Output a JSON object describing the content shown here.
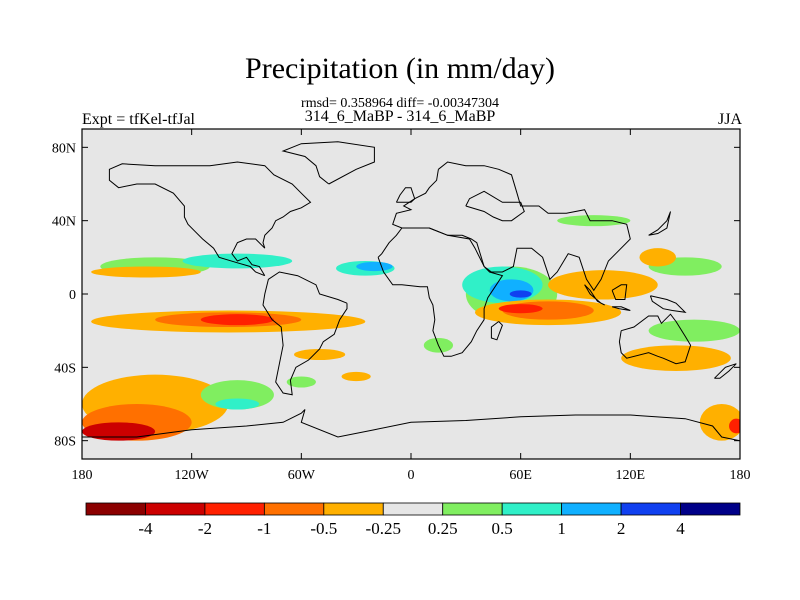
{
  "chart_data": {
    "type": "heatmap",
    "title": "Precipitation (in mm/day)",
    "stats_text": "rmsd= 0.358964 diff= -0.00347304",
    "subtitle": "314_6_MaBP - 314_6_MaBP",
    "left_label": "Expt = tfKel-tfJal",
    "right_label": "JJA",
    "xlim": [
      -180,
      180
    ],
    "ylim": [
      -90,
      90
    ],
    "x_ticks": [
      {
        "value": -180,
        "label": "180"
      },
      {
        "value": -120,
        "label": "120W"
      },
      {
        "value": -60,
        "label": "60W"
      },
      {
        "value": 0,
        "label": "0"
      },
      {
        "value": 60,
        "label": "60E"
      },
      {
        "value": 120,
        "label": "120E"
      },
      {
        "value": 180,
        "label": "180"
      }
    ],
    "y_ticks": [
      {
        "value": 80,
        "label": "80N"
      },
      {
        "value": 40,
        "label": "40N"
      },
      {
        "value": 0,
        "label": "0"
      },
      {
        "value": -40,
        "label": "40S"
      },
      {
        "value": -80,
        "label": "80S"
      }
    ],
    "colorbar": {
      "levels": [
        "-4",
        "-2",
        "-1",
        "-0.5",
        "-0.25",
        "0.25",
        "0.5",
        "1",
        "2",
        "4"
      ],
      "colors": [
        "#8b0000",
        "#cc0000",
        "#ff2000",
        "#ff7000",
        "#ffb000",
        "#e6e6e6",
        "#80ee60",
        "#30f0c8",
        "#10b0ff",
        "#1040f0",
        "#000088"
      ]
    },
    "background_color": "#e6e6e6",
    "anomaly_regions": [
      {
        "lon": -140,
        "lat": 15,
        "rx": 30,
        "ry": 5,
        "level": 6
      },
      {
        "lon": -95,
        "lat": 18,
        "rx": 30,
        "ry": 4,
        "level": 7
      },
      {
        "lon": -25,
        "lat": 14,
        "rx": 16,
        "ry": 4,
        "level": 7
      },
      {
        "lon": -20,
        "lat": 15,
        "rx": 10,
        "ry": 2.5,
        "level": 8
      },
      {
        "lon": -145,
        "lat": 12,
        "rx": 30,
        "ry": 3,
        "level": 4
      },
      {
        "lon": -100,
        "lat": -15,
        "rx": 75,
        "ry": 6,
        "level": 4
      },
      {
        "lon": -100,
        "lat": -14,
        "rx": 40,
        "ry": 4,
        "level": 3
      },
      {
        "lon": -95,
        "lat": -14,
        "rx": 20,
        "ry": 3,
        "level": 2
      },
      {
        "lon": -50,
        "lat": -33,
        "rx": 14,
        "ry": 3,
        "level": 4
      },
      {
        "lon": -140,
        "lat": -60,
        "rx": 40,
        "ry": 16,
        "level": 4
      },
      {
        "lon": -150,
        "lat": -70,
        "rx": 30,
        "ry": 10,
        "level": 3
      },
      {
        "lon": -160,
        "lat": -75,
        "rx": 20,
        "ry": 5,
        "level": 1
      },
      {
        "lon": -95,
        "lat": -55,
        "rx": 20,
        "ry": 8,
        "level": 6
      },
      {
        "lon": -95,
        "lat": -60,
        "rx": 12,
        "ry": 3,
        "level": 7
      },
      {
        "lon": 55,
        "lat": 0,
        "rx": 25,
        "ry": 15,
        "level": 6
      },
      {
        "lon": 50,
        "lat": 5,
        "rx": 22,
        "ry": 10,
        "level": 7
      },
      {
        "lon": 55,
        "lat": 2,
        "rx": 12,
        "ry": 6,
        "level": 8
      },
      {
        "lon": 60,
        "lat": 0,
        "rx": 6,
        "ry": 2,
        "level": 9
      },
      {
        "lon": 75,
        "lat": -10,
        "rx": 40,
        "ry": 7,
        "level": 4
      },
      {
        "lon": 75,
        "lat": -9,
        "rx": 25,
        "ry": 5,
        "level": 3
      },
      {
        "lon": 60,
        "lat": -8,
        "rx": 12,
        "ry": 2.5,
        "level": 2
      },
      {
        "lon": 90,
        "lat": 5,
        "rx": 12,
        "ry": 5,
        "level": 3
      },
      {
        "lon": 105,
        "lat": 5,
        "rx": 30,
        "ry": 8,
        "level": 4
      },
      {
        "lon": 155,
        "lat": -20,
        "rx": 25,
        "ry": 6,
        "level": 6
      },
      {
        "lon": 150,
        "lat": 15,
        "rx": 20,
        "ry": 5,
        "level": 6
      },
      {
        "lon": 135,
        "lat": 20,
        "rx": 10,
        "ry": 5,
        "level": 4
      },
      {
        "lon": 145,
        "lat": -35,
        "rx": 30,
        "ry": 7,
        "level": 4
      },
      {
        "lon": 100,
        "lat": 40,
        "rx": 20,
        "ry": 3,
        "level": 6
      },
      {
        "lon": 170,
        "lat": -70,
        "rx": 12,
        "ry": 10,
        "level": 4
      },
      {
        "lon": 178,
        "lat": -72,
        "rx": 4,
        "ry": 4,
        "level": 2
      },
      {
        "lon": -30,
        "lat": -45,
        "rx": 8,
        "ry": 2.5,
        "level": 4
      },
      {
        "lon": -60,
        "lat": -48,
        "rx": 8,
        "ry": 3,
        "level": 6
      },
      {
        "lon": 15,
        "lat": -28,
        "rx": 8,
        "ry": 4,
        "level": 6
      }
    ]
  }
}
